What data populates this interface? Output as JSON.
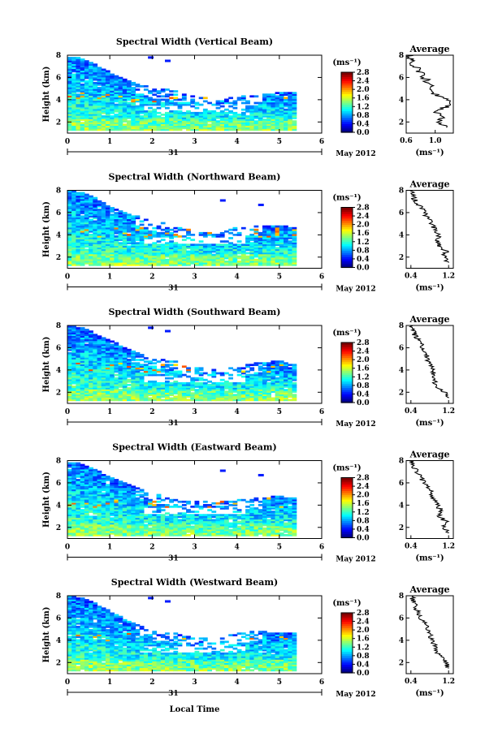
{
  "figure": {
    "xlabel": "Local Time",
    "date_day": "31",
    "date_text": "May 2012",
    "colorbar": {
      "unit": "(ms⁻¹)",
      "tick_labels": [
        "0.0",
        "0.4",
        "0.8",
        "1.2",
        "1.6",
        "2.0",
        "2.4",
        "2.8"
      ],
      "range": [
        0.0,
        2.8
      ],
      "colormap": "jet"
    },
    "average_panel": {
      "title": "Average",
      "unit": "(ms⁻¹)"
    }
  },
  "chart_data": [
    {
      "type": "heatmap",
      "title": "Spectral Width (Vertical Beam)",
      "ylabel": "Height (km)",
      "xlim": [
        0,
        6
      ],
      "ylim": [
        1,
        8
      ],
      "x_ticks": [
        "0",
        "1",
        "2",
        "3",
        "4",
        "5",
        "6"
      ],
      "y_ticks": [
        "2",
        "4",
        "6",
        "8"
      ],
      "data_end_hour": 5.3,
      "top_height_profile": {
        "hours": [
          0,
          0.5,
          1,
          1.5,
          2,
          2.5,
          3,
          3.5,
          4,
          4.5,
          5,
          5.3
        ],
        "km": [
          8.0,
          7.5,
          6.4,
          5.6,
          5.0,
          4.8,
          4.2,
          4.0,
          4.2,
          4.4,
          4.6,
          4.6
        ]
      },
      "average_profile": {
        "xlim": [
          0.6,
          1.25
        ],
        "x_ticks": [
          "0.6",
          "1.0"
        ],
        "height_km": [
          1.5,
          2.0,
          2.5,
          3.0,
          3.5,
          4.0,
          4.5,
          5.0,
          5.5,
          6.0,
          6.5,
          7.0,
          7.5,
          8.0
        ],
        "spectral_width": [
          1.15,
          1.05,
          1.1,
          1.0,
          1.2,
          1.15,
          1.0,
          0.95,
          0.9,
          0.85,
          0.78,
          0.72,
          0.68,
          0.65
        ]
      }
    },
    {
      "type": "heatmap",
      "title": "Spectral Width (Northward Beam)",
      "ylabel": "Height (km)",
      "xlim": [
        0,
        6
      ],
      "ylim": [
        1,
        8
      ],
      "x_ticks": [
        "0",
        "1",
        "2",
        "3",
        "4",
        "5",
        "6"
      ],
      "y_ticks": [
        "2",
        "4",
        "6",
        "8"
      ],
      "data_end_hour": 5.3,
      "top_height_profile": {
        "hours": [
          0,
          0.5,
          1,
          1.5,
          2,
          2.5,
          3,
          3.5,
          4,
          4.5,
          5,
          5.3
        ],
        "km": [
          8.0,
          7.6,
          6.5,
          5.8,
          5.2,
          5.0,
          4.4,
          4.2,
          4.6,
          4.8,
          4.8,
          4.6
        ]
      },
      "average_profile": {
        "xlim": [
          0.3,
          1.3
        ],
        "x_ticks": [
          "0.4",
          "1.2"
        ],
        "height_km": [
          1.5,
          2.0,
          2.5,
          3.0,
          3.5,
          4.0,
          4.5,
          5.0,
          5.5,
          6.0,
          6.5,
          7.0,
          7.5,
          8.0
        ],
        "spectral_width": [
          1.2,
          1.1,
          1.15,
          1.0,
          0.95,
          1.0,
          0.9,
          0.85,
          0.75,
          0.7,
          0.6,
          0.5,
          0.45,
          0.4
        ]
      }
    },
    {
      "type": "heatmap",
      "title": "Spectral Width (Southward Beam)",
      "ylabel": "Height (km)",
      "xlim": [
        0,
        6
      ],
      "ylim": [
        1,
        8
      ],
      "x_ticks": [
        "0",
        "1",
        "2",
        "3",
        "4",
        "5",
        "6"
      ],
      "y_ticks": [
        "2",
        "4",
        "6",
        "8"
      ],
      "data_end_hour": 5.3,
      "top_height_profile": {
        "hours": [
          0,
          0.5,
          1,
          1.5,
          2,
          2.5,
          3,
          3.5,
          4,
          4.5,
          5,
          5.3
        ],
        "km": [
          8.0,
          7.6,
          6.6,
          5.8,
          5.0,
          4.8,
          4.2,
          4.0,
          4.2,
          4.6,
          4.8,
          4.4
        ]
      },
      "average_profile": {
        "xlim": [
          0.3,
          1.3
        ],
        "x_ticks": [
          "0.4",
          "1.2"
        ],
        "height_km": [
          1.5,
          2.0,
          2.5,
          3.0,
          3.5,
          4.0,
          4.5,
          5.0,
          5.5,
          6.0,
          6.5,
          7.0,
          7.5,
          8.0
        ],
        "spectral_width": [
          1.2,
          1.1,
          0.95,
          0.9,
          0.85,
          0.9,
          0.8,
          0.75,
          0.72,
          0.65,
          0.58,
          0.5,
          0.45,
          0.4
        ]
      }
    },
    {
      "type": "heatmap",
      "title": "Spectral Width (Eastward Beam)",
      "ylabel": "Height (km)",
      "xlim": [
        0,
        6
      ],
      "ylim": [
        1,
        8
      ],
      "x_ticks": [
        "0",
        "1",
        "2",
        "3",
        "4",
        "5",
        "6"
      ],
      "y_ticks": [
        "2",
        "4",
        "6",
        "8"
      ],
      "data_end_hour": 5.3,
      "top_height_profile": {
        "hours": [
          0,
          0.5,
          1,
          1.5,
          2,
          2.5,
          3,
          3.5,
          4,
          4.5,
          5,
          5.3
        ],
        "km": [
          8.0,
          7.5,
          6.5,
          5.8,
          5.0,
          4.8,
          4.4,
          4.2,
          4.4,
          4.6,
          4.8,
          4.6
        ]
      },
      "average_profile": {
        "xlim": [
          0.3,
          1.3
        ],
        "x_ticks": [
          "0.4",
          "1.2"
        ],
        "height_km": [
          1.5,
          2.0,
          2.5,
          3.0,
          3.5,
          4.0,
          4.5,
          5.0,
          5.5,
          6.0,
          6.5,
          7.0,
          7.5,
          8.0
        ],
        "spectral_width": [
          1.2,
          1.1,
          1.15,
          1.0,
          1.05,
          0.95,
          0.9,
          0.85,
          0.78,
          0.7,
          0.6,
          0.52,
          0.45,
          0.4
        ]
      }
    },
    {
      "type": "heatmap",
      "title": "Spectral Width (Westward Beam)",
      "ylabel": "Height (km)",
      "xlim": [
        0,
        6
      ],
      "ylim": [
        1,
        8
      ],
      "x_ticks": [
        "0",
        "1",
        "2",
        "3",
        "4",
        "5",
        "6"
      ],
      "y_ticks": [
        "2",
        "4",
        "6",
        "8"
      ],
      "data_end_hour": 5.3,
      "top_height_profile": {
        "hours": [
          0,
          0.5,
          1,
          1.5,
          2,
          2.5,
          3,
          3.5,
          4,
          4.5,
          5,
          5.3
        ],
        "km": [
          8.0,
          7.6,
          6.6,
          5.6,
          4.8,
          4.6,
          4.2,
          4.0,
          4.6,
          4.8,
          4.6,
          4.6
        ]
      },
      "average_profile": {
        "xlim": [
          0.3,
          1.3
        ],
        "x_ticks": [
          "0.4",
          "1.2"
        ],
        "height_km": [
          1.5,
          2.0,
          2.5,
          3.0,
          3.5,
          4.0,
          4.5,
          5.0,
          5.5,
          6.0,
          6.5,
          7.0,
          7.5,
          8.0
        ],
        "spectral_width": [
          1.2,
          1.15,
          1.05,
          0.95,
          0.9,
          0.85,
          0.82,
          0.75,
          0.7,
          0.62,
          0.55,
          0.5,
          0.45,
          0.42
        ]
      }
    }
  ]
}
